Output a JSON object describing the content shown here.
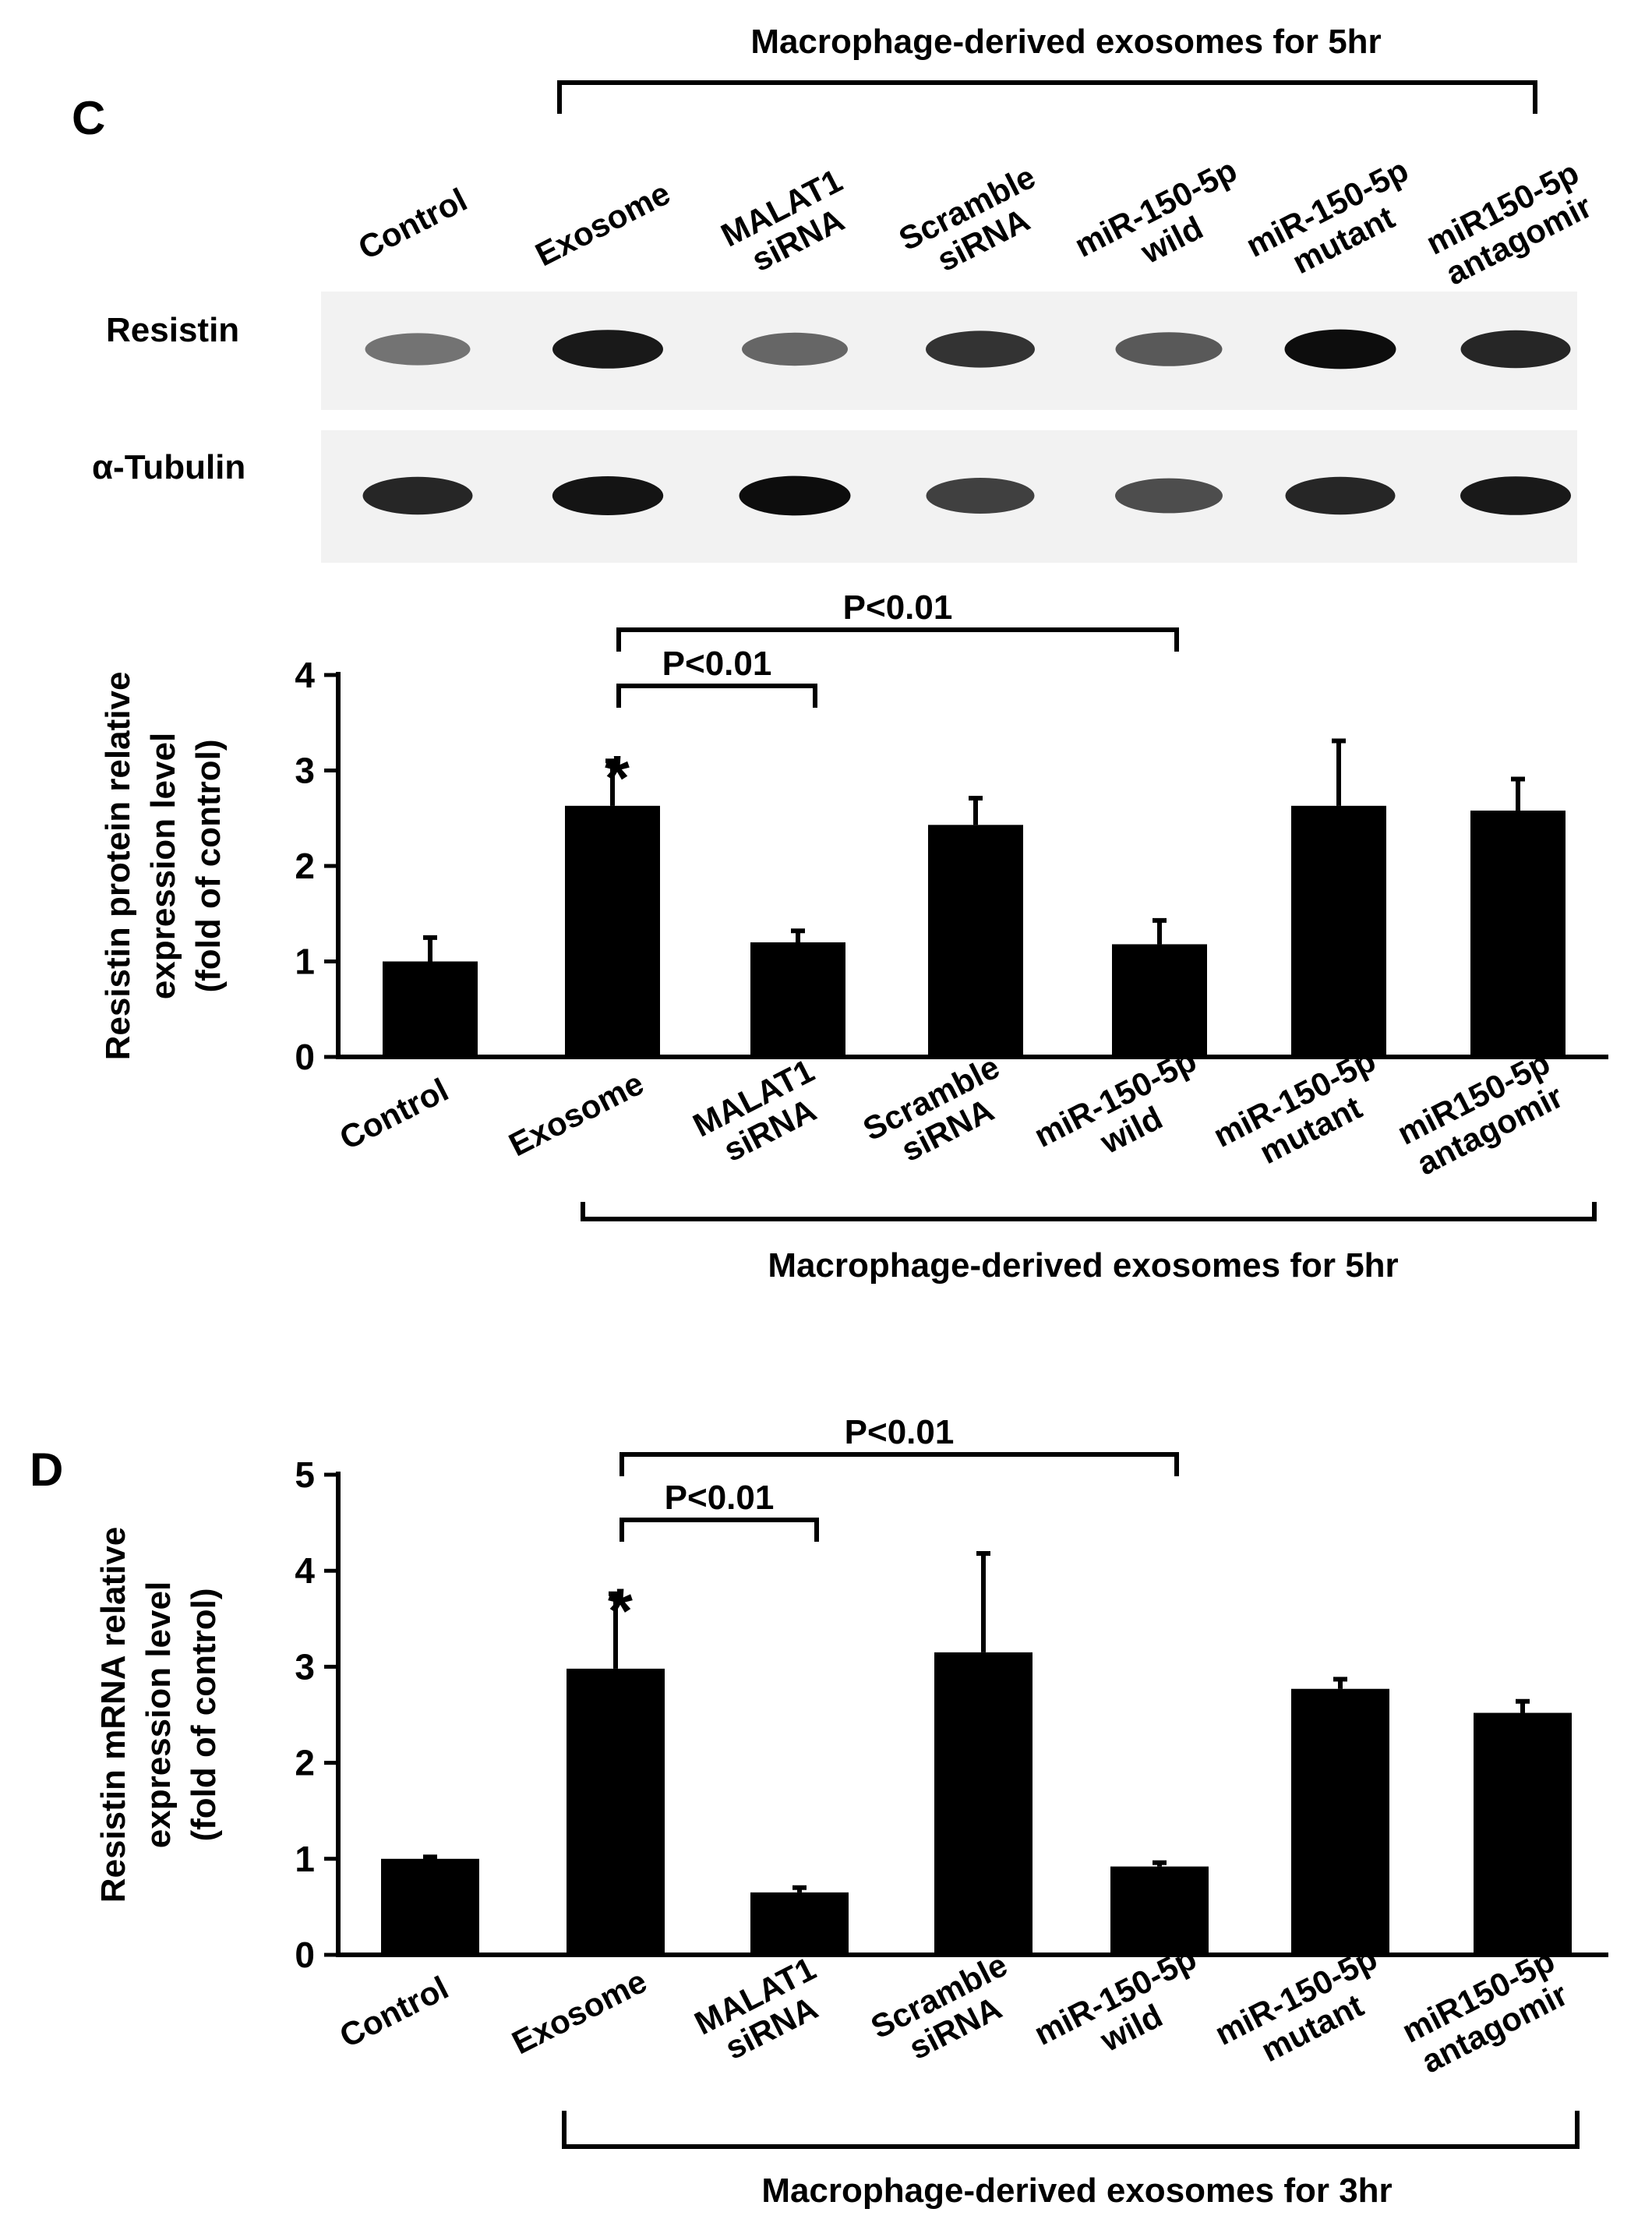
{
  "panel_c": {
    "letter": "C",
    "top_bracket_label": "Macrophage-derived exosomes for 5hr",
    "lane_labels": [
      [
        "Control"
      ],
      [
        "Exosome"
      ],
      [
        "MALAT1",
        "siRNA"
      ],
      [
        "Scramble",
        "siRNA"
      ],
      [
        "miR-150-5p",
        "wild"
      ],
      [
        "miR-150-5p",
        "mutant"
      ],
      [
        "miR150-5p",
        "antagomir"
      ]
    ],
    "blots": [
      {
        "label": "Resistin",
        "band_intensity": [
          0.55,
          0.9,
          0.6,
          0.8,
          0.65,
          0.95,
          0.85
        ]
      },
      {
        "label": "α-Tubulin",
        "band_intensity": [
          0.85,
          0.92,
          0.95,
          0.75,
          0.7,
          0.85,
          0.9
        ]
      }
    ],
    "bottom_bracket_label": "Macrophage-derived exosomes for 5hr"
  },
  "panel_d": {
    "letter": "D",
    "bottom_bracket_label": "Macrophage-derived exosomes for 3hr"
  },
  "colors": {
    "bar": "#000000",
    "background": "#ffffff",
    "blot_bg": "#f2f2f2"
  },
  "chart_data": [
    {
      "type": "bar",
      "categories": [
        [
          "Control"
        ],
        [
          "Exosome"
        ],
        [
          "MALAT1",
          "siRNA"
        ],
        [
          "Scramble",
          "siRNA"
        ],
        [
          "miR-150-5p",
          "wild"
        ],
        [
          "miR-150-5p",
          "mutant"
        ],
        [
          "miR150-5p",
          "antagomir"
        ]
      ],
      "values": [
        1.0,
        2.63,
        1.2,
        2.43,
        1.18,
        2.63,
        2.58
      ],
      "errors": [
        0.25,
        0.47,
        0.12,
        0.28,
        0.25,
        0.68,
        0.33
      ],
      "ylabel_lines": [
        "Resistin protein relative",
        "expression level",
        "(fold of control)"
      ],
      "ylim": [
        0,
        4
      ],
      "yticks": [
        0,
        1,
        2,
        3,
        4
      ],
      "grid": false,
      "star": {
        "category_index": 1,
        "text": "*"
      },
      "significance": [
        {
          "from": 1,
          "to": 2,
          "label": "P<0.01"
        },
        {
          "from": 1,
          "to": 4,
          "label": "P<0.01"
        }
      ]
    },
    {
      "type": "bar",
      "categories": [
        [
          "Control"
        ],
        [
          "Exosome"
        ],
        [
          "MALAT1",
          "siRNA"
        ],
        [
          "Scramble",
          "siRNA"
        ],
        [
          "miR-150-5p",
          "wild"
        ],
        [
          "miR-150-5p",
          "mutant"
        ],
        [
          "miR150-5p",
          "antagomir"
        ]
      ],
      "values": [
        1.0,
        2.98,
        0.65,
        3.15,
        0.92,
        2.77,
        2.52
      ],
      "errors": [
        0.02,
        0.78,
        0.05,
        1.03,
        0.04,
        0.1,
        0.12
      ],
      "ylabel_lines": [
        "Resistin mRNA relative",
        "expression level",
        "(fold of control)"
      ],
      "ylim": [
        0,
        5
      ],
      "yticks": [
        0,
        1,
        2,
        3,
        4,
        5
      ],
      "grid": false,
      "star": {
        "category_index": 1,
        "text": "*"
      },
      "significance": [
        {
          "from": 1,
          "to": 2,
          "label": "P<0.01"
        },
        {
          "from": 1,
          "to": 4,
          "label": "P<0.01"
        }
      ]
    }
  ]
}
